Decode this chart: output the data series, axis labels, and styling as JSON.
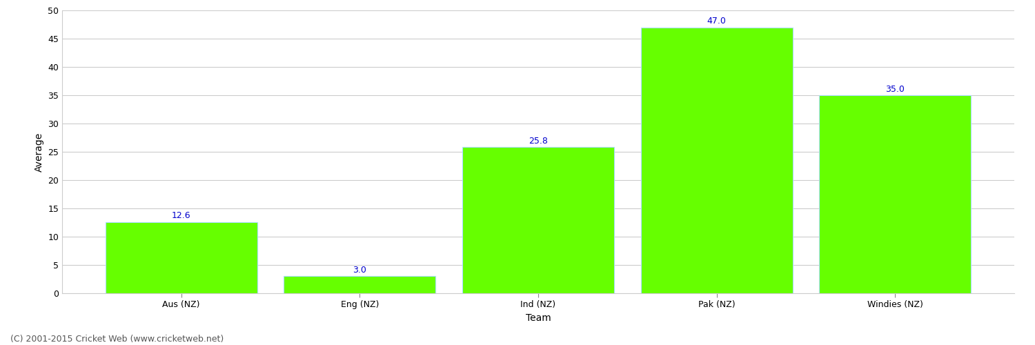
{
  "categories": [
    "Aus (NZ)",
    "Eng (NZ)",
    "Ind (NZ)",
    "Pak (NZ)",
    "Windies (NZ)"
  ],
  "values": [
    12.6,
    3.0,
    25.8,
    47.0,
    35.0
  ],
  "bar_color": "#66ff00",
  "bar_edge_color": "#aaddff",
  "label_color": "#0000cc",
  "xlabel": "Team",
  "ylabel": "Average",
  "ylim": [
    0,
    50
  ],
  "yticks": [
    0,
    5,
    10,
    15,
    20,
    25,
    30,
    35,
    40,
    45,
    50
  ],
  "grid_color": "#cccccc",
  "bg_color": "#ffffff",
  "footer": "(C) 2001-2015 Cricket Web (www.cricketweb.net)",
  "label_fontsize": 9,
  "axis_label_fontsize": 10,
  "tick_fontsize": 9,
  "footer_fontsize": 9,
  "bar_width": 0.85
}
